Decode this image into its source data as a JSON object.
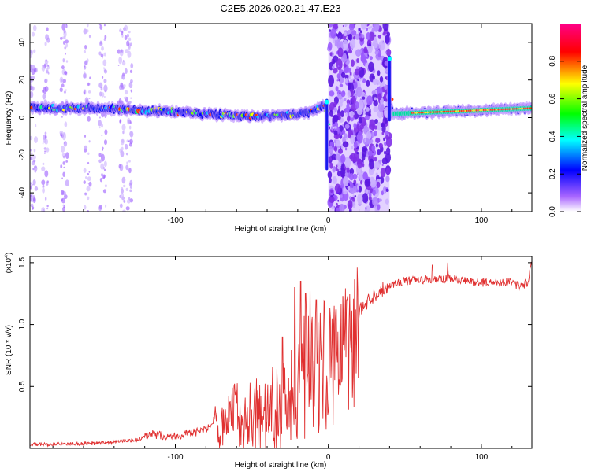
{
  "title": "C2E5.2026.020.21.47.E23",
  "colors": {
    "line": "#e03030",
    "band": "#2233dd",
    "scatter": "#7a2fe0",
    "axis": "#000000"
  },
  "chart_data": [
    {
      "type": "heatmap",
      "xlabel": "Height of straight line (km)",
      "ylabel": "Frequency (Hz)",
      "xlim": [
        -195,
        133
      ],
      "ylim": [
        -50,
        50
      ],
      "xticks": [
        -100,
        0,
        100
      ],
      "xtick_labels": [
        "-100",
        "0",
        "100"
      ],
      "yticks": [
        40,
        20,
        0,
        -20,
        -40
      ],
      "ytick_labels": [
        "40",
        "20",
        "0",
        "-20",
        "-40"
      ],
      "band": {
        "center_hz": [
          [
            -195,
            5
          ],
          [
            -150,
            5
          ],
          [
            -100,
            3
          ],
          [
            -60,
            1
          ],
          [
            -30,
            1
          ],
          [
            -10,
            3
          ],
          [
            -2,
            7
          ],
          [
            0,
            -5
          ],
          [
            38,
            20
          ],
          [
            42,
            2
          ],
          [
            133,
            5
          ]
        ],
        "features": [
          {
            "x": -1,
            "from_hz": -28,
            "to_hz": 10,
            "label": "negative spike"
          },
          {
            "x": 40,
            "from_hz": -2,
            "to_hz": 33,
            "label": "positive spike"
          }
        ]
      },
      "scatter_regions": [
        {
          "x_range": [
            -195,
            -127
          ],
          "density": "sparse"
        },
        {
          "x_range": [
            0,
            40
          ],
          "density": "dense"
        }
      ],
      "colorbar": {
        "label": "Normalized spectral amplitude",
        "range": [
          0,
          1
        ],
        "ticks": [
          0.0,
          0.2,
          0.4,
          0.6,
          0.8
        ],
        "tick_labels": [
          "0.0",
          "0.2",
          "0.4",
          "0.6",
          "0.8"
        ],
        "stops": [
          "#ffffff",
          "#9944ff",
          "#0000ff",
          "#00ffff",
          "#00ff00",
          "#ffff00",
          "#ff0000",
          "#ff0088"
        ]
      }
    },
    {
      "type": "line",
      "xlabel": "Height of straight line (km)",
      "ylabel": "SNR (10 * v/v)",
      "scale_label": "(x10",
      "scale_exp": "4",
      "scale_close": ")",
      "xlim": [
        -195,
        133
      ],
      "ylim": [
        0,
        1.55
      ],
      "xticks": [
        -100,
        0,
        100
      ],
      "xtick_labels": [
        "-100",
        "0",
        "100"
      ],
      "yticks": [
        0.5,
        1.0,
        1.5
      ],
      "ytick_labels": [
        "0.5",
        "1.0",
        "1.5"
      ],
      "series": [
        {
          "name": "SNR",
          "x": [
            -195,
            -150,
            -125,
            -115,
            -100,
            -90,
            -80,
            -70,
            -60,
            -50,
            -40,
            -30,
            -25,
            -20,
            -15,
            -10,
            -5,
            0,
            5,
            10,
            15,
            20,
            25,
            30,
            35,
            40,
            50,
            60,
            70,
            80,
            90,
            100,
            110,
            120,
            125,
            130,
            133
          ],
          "values": [
            0.03,
            0.04,
            0.07,
            0.11,
            0.1,
            0.12,
            0.15,
            0.22,
            0.3,
            0.3,
            0.32,
            0.38,
            0.48,
            0.62,
            0.7,
            0.68,
            0.75,
            0.85,
            0.95,
            1.02,
            1.08,
            1.1,
            1.18,
            1.24,
            1.28,
            1.32,
            1.35,
            1.36,
            1.36,
            1.37,
            1.35,
            1.34,
            1.34,
            1.35,
            1.3,
            1.34,
            1.5
          ],
          "spikes": [
            [
              -30,
              0.9
            ],
            [
              -22,
              1.3
            ],
            [
              -18,
              1.35
            ],
            [
              -15,
              1.25
            ],
            [
              -12,
              1.35
            ],
            [
              -8,
              1.2
            ],
            [
              5,
              1.12
            ],
            [
              12,
              1.2
            ],
            [
              68,
              1.48
            ],
            [
              78,
              1.5
            ]
          ]
        }
      ]
    }
  ]
}
